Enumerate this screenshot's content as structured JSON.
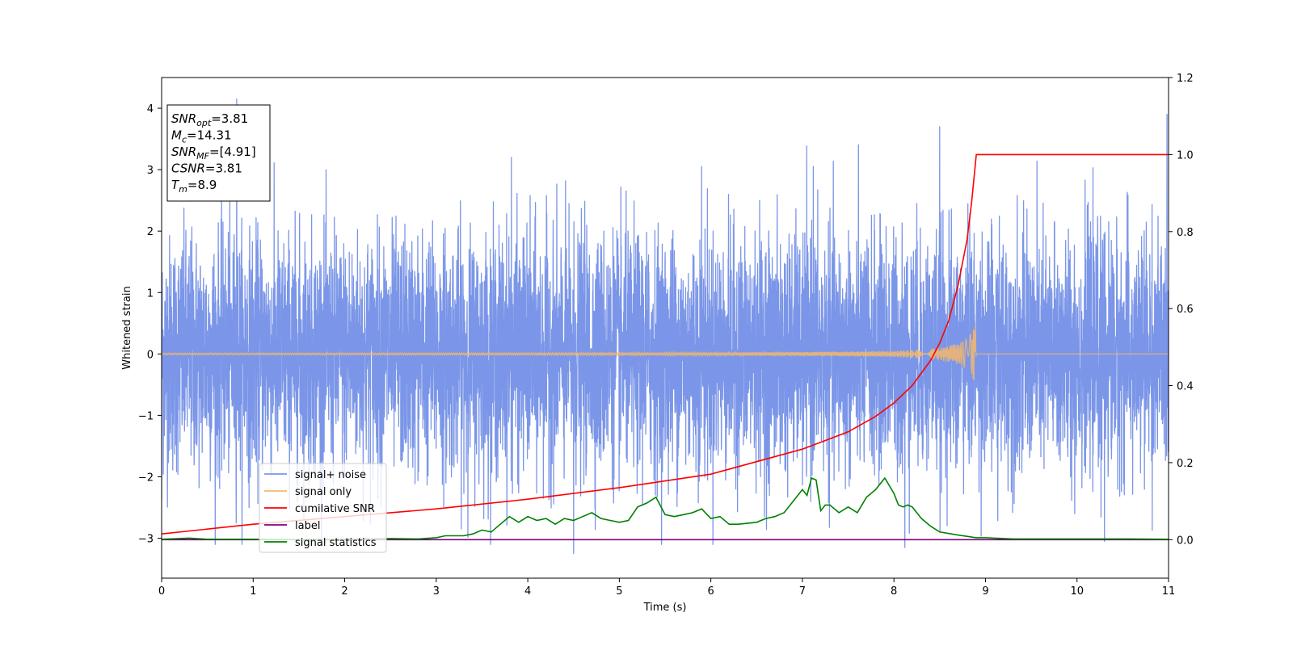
{
  "chart_data": {
    "type": "line",
    "title": "",
    "xlabel": "Time (s)",
    "ylabel": "Whitened strain",
    "xlim": [
      0,
      11
    ],
    "ylim": [
      -3.65,
      4.5
    ],
    "y2lim": [
      -0.1,
      1.2
    ],
    "xticks": [
      0,
      1,
      2,
      3,
      4,
      5,
      6,
      7,
      8,
      9,
      10,
      11
    ],
    "yticks": [
      -3,
      -2,
      -1,
      0,
      1,
      2,
      3,
      4
    ],
    "y2ticks": [
      0.0,
      0.2,
      0.4,
      0.6,
      0.8,
      1.0,
      1.2
    ],
    "grid": false,
    "legend_position": "lower-left",
    "info_box": {
      "position": "top-left",
      "lines": [
        {
          "sym": "SNR",
          "sub": "opt",
          "val": "=3.81"
        },
        {
          "sym": "M",
          "sub": "c",
          "val": "=14.31"
        },
        {
          "sym": "SNR",
          "sub": "MF",
          "val": "=[4.91]"
        },
        {
          "sym": "CSNR",
          "sub": "",
          "val": "=3.81"
        },
        {
          "sym": "T",
          "sub": "m",
          "val": "=8.9"
        }
      ]
    },
    "series": [
      {
        "name": "signal+ noise",
        "color": "#7b96e8",
        "axis": "left",
        "kind": "noise",
        "sigma": 0.95,
        "samples": 6600,
        "spikes": [
          [
            0.82,
            4.15
          ],
          [
            3.82,
            3.2
          ],
          [
            5.9,
            3.05
          ],
          [
            7.12,
            3.05
          ],
          [
            8.5,
            3.7
          ],
          [
            4.5,
            -3.25
          ],
          [
            8.12,
            -3.15
          ],
          [
            10.3,
            -3.05
          ],
          [
            0.0,
            -2.4
          ]
        ]
      },
      {
        "name": "signal only",
        "color": "#f5b96b",
        "axis": "left",
        "kind": "chirp",
        "t_end": 8.9,
        "x": [
          0,
          2,
          4,
          6,
          7,
          7.5,
          8,
          8.3,
          8.5,
          8.7,
          8.8,
          8.9
        ],
        "amplitude": [
          0.015,
          0.016,
          0.018,
          0.024,
          0.03,
          0.038,
          0.05,
          0.07,
          0.1,
          0.17,
          0.25,
          0.5
        ]
      },
      {
        "name": "cumilative SNR",
        "color": "#ff0000",
        "axis": "right",
        "x": [
          0,
          1,
          2,
          3,
          4,
          5,
          6,
          7,
          7.5,
          7.8,
          8.0,
          8.2,
          8.4,
          8.5,
          8.6,
          8.7,
          8.8,
          8.85,
          8.9,
          11
        ],
        "y": [
          0.015,
          0.04,
          0.06,
          0.08,
          0.105,
          0.135,
          0.17,
          0.235,
          0.28,
          0.32,
          0.355,
          0.4,
          0.465,
          0.51,
          0.57,
          0.66,
          0.78,
          0.88,
          1.0,
          1.0
        ]
      },
      {
        "name": "label",
        "color": "#800080",
        "axis": "right",
        "x": [
          0,
          11
        ],
        "y": [
          0,
          0
        ]
      },
      {
        "name": "signal statistics",
        "color": "#008000",
        "axis": "right",
        "x": [
          0,
          0.3,
          0.5,
          1.0,
          1.5,
          2.0,
          2.5,
          2.8,
          3.0,
          3.1,
          3.3,
          3.4,
          3.5,
          3.6,
          3.8,
          3.9,
          4.0,
          4.1,
          4.2,
          4.3,
          4.4,
          4.5,
          4.6,
          4.7,
          4.8,
          4.9,
          5.0,
          5.1,
          5.2,
          5.3,
          5.4,
          5.5,
          5.6,
          5.7,
          5.8,
          5.9,
          6.0,
          6.1,
          6.2,
          6.3,
          6.5,
          6.6,
          6.7,
          6.8,
          6.9,
          7.0,
          7.05,
          7.1,
          7.15,
          7.2,
          7.25,
          7.3,
          7.4,
          7.5,
          7.6,
          7.7,
          7.8,
          7.9,
          8.0,
          8.05,
          8.1,
          8.15,
          8.2,
          8.3,
          8.4,
          8.5,
          8.7,
          8.9,
          9.0,
          9.3,
          10.0,
          10.5,
          11.0
        ],
        "y": [
          0.001,
          0.004,
          0.001,
          0.001,
          0.0,
          0.001,
          0.003,
          0.002,
          0.005,
          0.01,
          0.01,
          0.015,
          0.025,
          0.02,
          0.06,
          0.045,
          0.06,
          0.05,
          0.055,
          0.04,
          0.055,
          0.05,
          0.06,
          0.07,
          0.055,
          0.05,
          0.045,
          0.05,
          0.085,
          0.095,
          0.11,
          0.065,
          0.06,
          0.065,
          0.07,
          0.08,
          0.055,
          0.06,
          0.04,
          0.04,
          0.045,
          0.055,
          0.06,
          0.07,
          0.1,
          0.13,
          0.115,
          0.16,
          0.155,
          0.075,
          0.09,
          0.09,
          0.07,
          0.085,
          0.07,
          0.11,
          0.13,
          0.16,
          0.12,
          0.09,
          0.085,
          0.09,
          0.085,
          0.055,
          0.035,
          0.02,
          0.012,
          0.005,
          0.005,
          0.002,
          0.002,
          0.002,
          0.001
        ]
      }
    ]
  }
}
